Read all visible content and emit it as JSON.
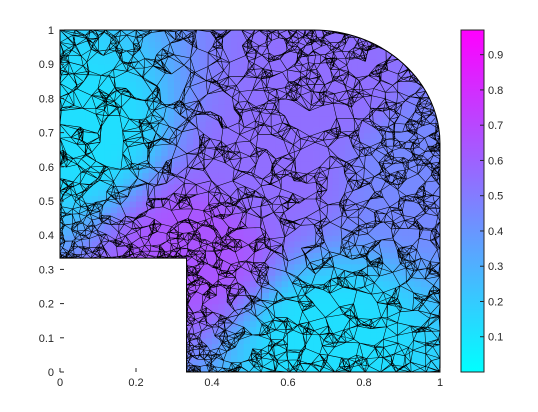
{
  "chart_data": {
    "type": "heatmap",
    "title": "",
    "xlabel": "",
    "ylabel": "",
    "xlim": [
      0,
      1
    ],
    "ylim": [
      0,
      1
    ],
    "x_ticks": [
      "0",
      "0.2",
      "0.4",
      "0.6",
      "0.8",
      "1"
    ],
    "x_tick_values": [
      0,
      0.2,
      0.4,
      0.6,
      0.8,
      1
    ],
    "y_ticks": [
      "0",
      "0.1",
      "0.2",
      "0.3",
      "0.4",
      "0.5",
      "0.6",
      "0.7",
      "0.8",
      "0.9",
      "1"
    ],
    "y_tick_values": [
      0,
      0.1,
      0.2,
      0.3,
      0.4,
      0.5,
      0.6,
      0.7,
      0.8,
      0.9,
      1
    ],
    "colorbar": {
      "colormap": "cool",
      "range": [
        0,
        0.97
      ],
      "ticks": [
        "0.1",
        "0.2",
        "0.3",
        "0.4",
        "0.5",
        "0.6",
        "0.7",
        "0.8",
        "0.9"
      ],
      "tick_values": [
        0.1,
        0.2,
        0.3,
        0.4,
        0.5,
        0.6,
        0.7,
        0.8,
        0.9
      ]
    },
    "domain": {
      "shape": "unit square with rounded top-right corner and square cutout at bottom-left",
      "cutout": {
        "x": [
          0,
          0.333
        ],
        "y": [
          0,
          0.333
        ]
      },
      "corner_radius": 0.333
    },
    "field_samples": [
      {
        "x": 0.36,
        "y": 0.36,
        "value": 0.65
      },
      {
        "x": 0.55,
        "y": 0.6,
        "value": 0.55
      },
      {
        "x": 0.7,
        "y": 0.85,
        "value": 0.55
      },
      {
        "x": 0.05,
        "y": 0.7,
        "value": 0.12
      },
      {
        "x": 0.7,
        "y": 0.1,
        "value": 0.12
      },
      {
        "x": 0.95,
        "y": 0.6,
        "value": 0.45
      }
    ],
    "mesh": "triangular finite-element mesh, refined near (0.333, 0.333), (0, 0.333), (0.333, 0), (0.667, 1) and (1, 0.667)"
  }
}
